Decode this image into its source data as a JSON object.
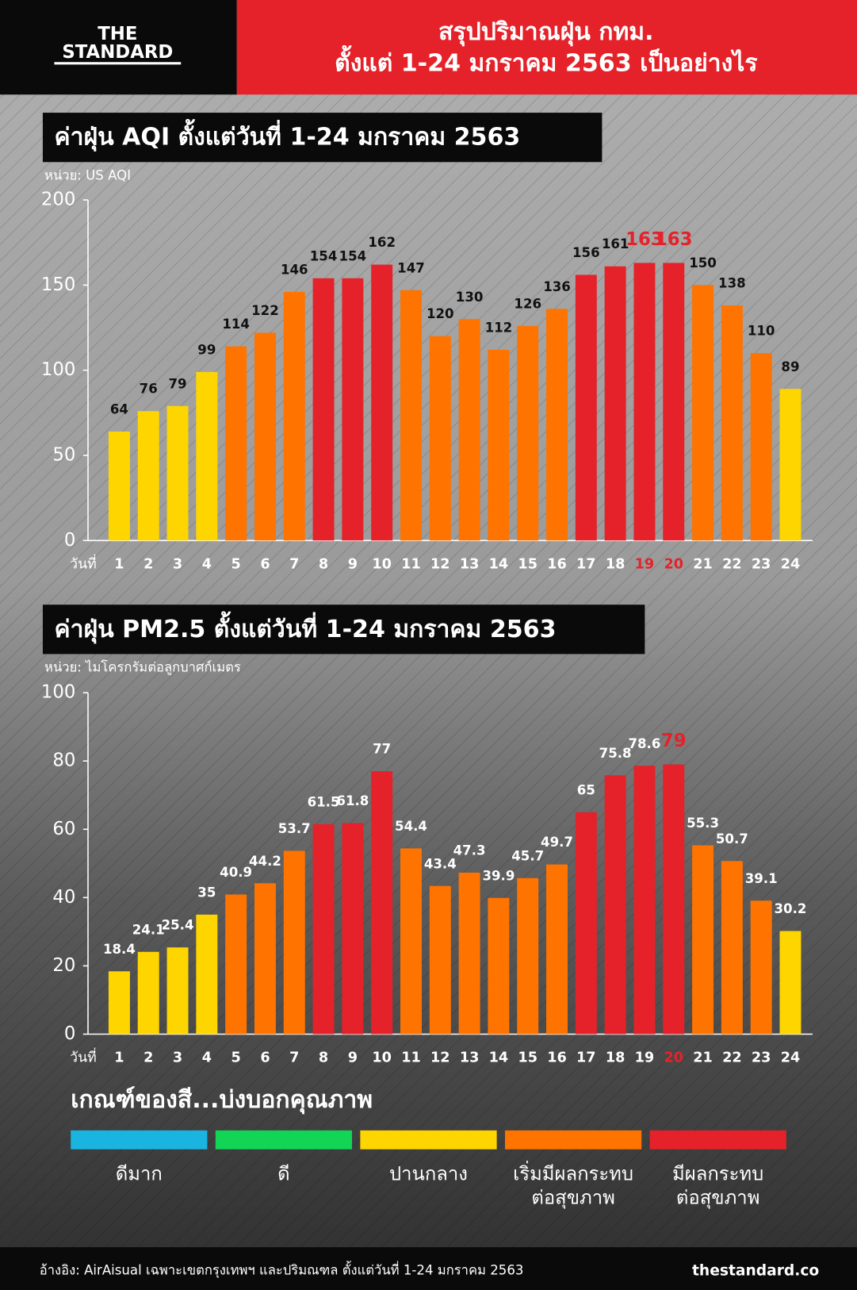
{
  "header": {
    "brand": [
      "THE",
      "STANDARD"
    ],
    "title": [
      "สรุปปริมาณฝุ่น กทม.",
      "ตั้งแต่ 1-24 มกราคม 2563 เป็นอย่างไร"
    ]
  },
  "chart_data": [
    {
      "type": "bar",
      "title": "ค่าฝุ่น AQI ตั้งแต่วันที่ 1-24 มกราคม 2563",
      "unit_label": "หน่วย: US AQI",
      "x_label": "วันที่",
      "categories": [
        "1",
        "2",
        "3",
        "4",
        "5",
        "6",
        "7",
        "8",
        "9",
        "10",
        "11",
        "12",
        "13",
        "14",
        "15",
        "16",
        "17",
        "18",
        "19",
        "20",
        "21",
        "22",
        "23",
        "24"
      ],
      "values": [
        64,
        76,
        79,
        99,
        114,
        122,
        146,
        154,
        154,
        162,
        147,
        120,
        130,
        112,
        126,
        136,
        156,
        161,
        163,
        163,
        150,
        138,
        110,
        89
      ],
      "colors": [
        "#ffd500",
        "#ffd500",
        "#ffd500",
        "#ffd500",
        "#ff7300",
        "#ff7300",
        "#ff7300",
        "#e5222a",
        "#e5222a",
        "#e5222a",
        "#ff7300",
        "#ff7300",
        "#ff7300",
        "#ff7300",
        "#ff7300",
        "#ff7300",
        "#e5222a",
        "#e5222a",
        "#e5222a",
        "#e5222a",
        "#ff7300",
        "#ff7300",
        "#ff7300",
        "#ffd500"
      ],
      "value_label_colors": [
        "#111",
        "#111",
        "#111",
        "#111",
        "#111",
        "#111",
        "#111",
        "#111",
        "#111",
        "#111",
        "#111",
        "#111",
        "#111",
        "#111",
        "#111",
        "#111",
        "#111",
        "#111",
        "#e5222a",
        "#e5222a",
        "#111",
        "#111",
        "#111",
        "#111"
      ],
      "category_colors": [
        "#fff",
        "#fff",
        "#fff",
        "#fff",
        "#fff",
        "#fff",
        "#fff",
        "#fff",
        "#fff",
        "#fff",
        "#fff",
        "#fff",
        "#fff",
        "#fff",
        "#fff",
        "#fff",
        "#fff",
        "#fff",
        "#e5222a",
        "#e5222a",
        "#fff",
        "#fff",
        "#fff",
        "#fff"
      ],
      "ylim": [
        0,
        200
      ],
      "yticks": [
        0,
        50,
        100,
        150,
        200
      ]
    },
    {
      "type": "bar",
      "title": "ค่าฝุ่น PM2.5 ตั้งแต่วันที่ 1-24 มกราคม 2563",
      "unit_label": "หน่วย: ไมโครกรัมต่อลูกบาศก์เมตร",
      "x_label": "วันที่",
      "categories": [
        "1",
        "2",
        "3",
        "4",
        "5",
        "6",
        "7",
        "8",
        "9",
        "10",
        "11",
        "12",
        "13",
        "14",
        "15",
        "16",
        "17",
        "18",
        "19",
        "20",
        "21",
        "22",
        "23",
        "24"
      ],
      "values": [
        18.4,
        24.1,
        25.4,
        35,
        40.9,
        44.2,
        53.7,
        61.5,
        61.8,
        77,
        54.4,
        43.4,
        47.3,
        39.9,
        45.7,
        49.7,
        65,
        75.8,
        78.6,
        79,
        55.3,
        50.7,
        39.1,
        30.2
      ],
      "colors": [
        "#ffd500",
        "#ffd500",
        "#ffd500",
        "#ffd500",
        "#ff7300",
        "#ff7300",
        "#ff7300",
        "#e5222a",
        "#e5222a",
        "#e5222a",
        "#ff7300",
        "#ff7300",
        "#ff7300",
        "#ff7300",
        "#ff7300",
        "#ff7300",
        "#e5222a",
        "#e5222a",
        "#e5222a",
        "#e5222a",
        "#ff7300",
        "#ff7300",
        "#ff7300",
        "#ffd500"
      ],
      "value_label_colors": [
        "#fff",
        "#fff",
        "#fff",
        "#fff",
        "#fff",
        "#fff",
        "#fff",
        "#fff",
        "#fff",
        "#fff",
        "#fff",
        "#fff",
        "#fff",
        "#fff",
        "#fff",
        "#fff",
        "#fff",
        "#fff",
        "#fff",
        "#e5222a",
        "#fff",
        "#fff",
        "#fff",
        "#fff"
      ],
      "category_colors": [
        "#fff",
        "#fff",
        "#fff",
        "#fff",
        "#fff",
        "#fff",
        "#fff",
        "#fff",
        "#fff",
        "#fff",
        "#fff",
        "#fff",
        "#fff",
        "#fff",
        "#fff",
        "#fff",
        "#fff",
        "#fff",
        "#fff",
        "#e5222a",
        "#fff",
        "#fff",
        "#fff",
        "#fff"
      ],
      "ylim": [
        0,
        100
      ],
      "yticks": [
        0,
        20,
        40,
        60,
        80,
        100
      ]
    }
  ],
  "legend": {
    "title": "เกณฑ์ของสี...บ่งบอกคุณภาพ",
    "colors": [
      "#1ab4e0",
      "#12d455",
      "#ffd500",
      "#ff7300",
      "#e5222a"
    ],
    "labels": [
      [
        "ดีมาก"
      ],
      [
        "ดี"
      ],
      [
        "ปานกลาง"
      ],
      [
        "เริ่มมีผลกระทบ",
        "ต่อสุขภาพ"
      ],
      [
        "มีผลกระทบ",
        "ต่อสุขภาพ"
      ]
    ]
  },
  "footer": {
    "source": "อ้างอิง: AirAisual เฉพาะเขตกรุงเทพฯ และปริมณฑล ตั้งแต่วันที่ 1-24 มกราคม 2563",
    "site": "thestandard.co"
  }
}
